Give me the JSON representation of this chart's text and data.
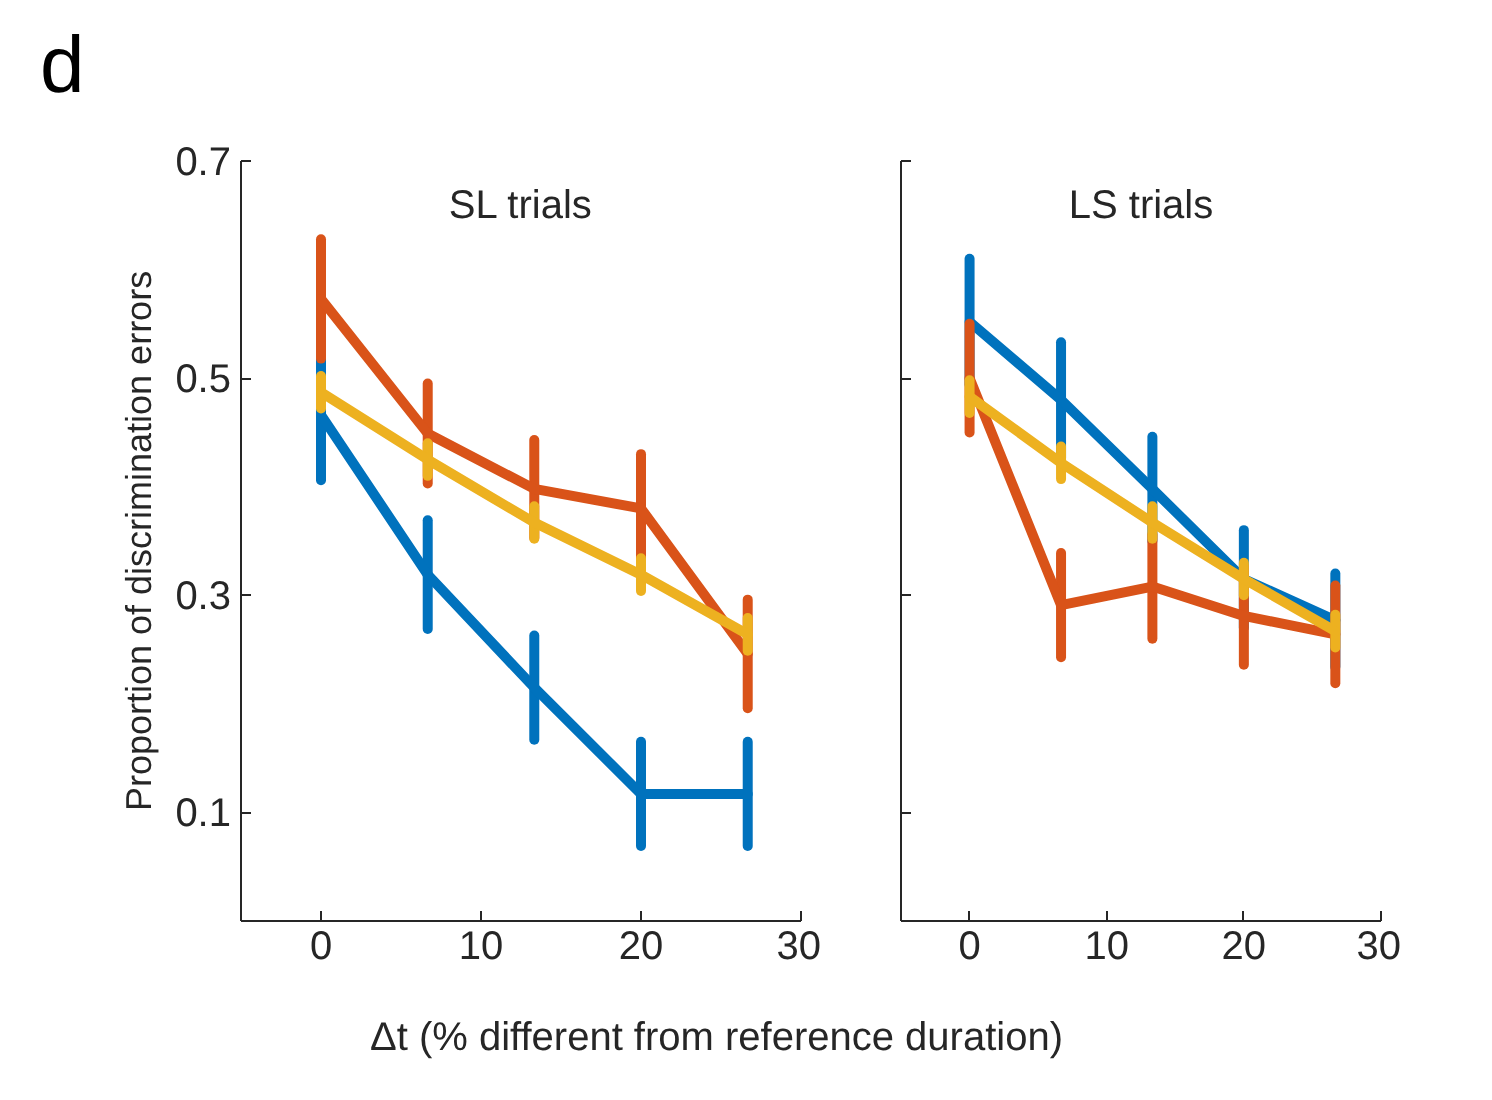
{
  "chart_data": [
    {
      "type": "line",
      "title": "SL trials",
      "ylabel": "Proportion of discrimination errors",
      "xlabel": "Δt (% different from reference duration)",
      "annotations": [
        "d"
      ],
      "x": [
        0,
        6.67,
        13.33,
        20,
        26.67
      ],
      "xlim": [
        -5,
        30
      ],
      "xticks": [
        0,
        10,
        20,
        30
      ],
      "ylim": [
        0,
        0.7
      ],
      "yticks": [
        0.1,
        0.3,
        0.5,
        0.7
      ],
      "grid": false,
      "series": [
        {
          "color": "#0072bd",
          "values": [
            0.466,
            0.319,
            0.215,
            0.117,
            0.117
          ],
          "errors": [
            0.06,
            0.05,
            0.048,
            0.048,
            0.048
          ]
        },
        {
          "color": "#d95319",
          "values": [
            0.573,
            0.449,
            0.398,
            0.38,
            0.246
          ],
          "errors": [
            0.055,
            0.046,
            0.045,
            0.05,
            0.05
          ]
        },
        {
          "color": "#edb120",
          "values": [
            0.487,
            0.425,
            0.367,
            0.319,
            0.264
          ],
          "errors": [
            0.015,
            0.015,
            0.015,
            0.015,
            0.015
          ]
        }
      ]
    },
    {
      "type": "line",
      "title": "LS trials",
      "tick_labels": "x",
      "x": [
        0,
        6.67,
        13.33,
        20,
        26.67
      ],
      "xlim": [
        -5,
        30
      ],
      "xticks": [
        0,
        10,
        20,
        30
      ],
      "ylim": [
        0,
        0.7
      ],
      "yticks": [
        0.1,
        0.3,
        0.5,
        0.7
      ],
      "grid": false,
      "series": [
        {
          "color": "#0072bd",
          "values": [
            0.552,
            0.48,
            0.398,
            0.315,
            0.277
          ],
          "errors": [
            0.058,
            0.053,
            0.048,
            0.045,
            0.043
          ]
        },
        {
          "color": "#d95319",
          "values": [
            0.5,
            0.291,
            0.308,
            0.281,
            0.264
          ],
          "errors": [
            0.05,
            0.048,
            0.048,
            0.045,
            0.045
          ]
        },
        {
          "color": "#edb120",
          "values": [
            0.483,
            0.422,
            0.367,
            0.315,
            0.267
          ],
          "errors": [
            0.015,
            0.015,
            0.015,
            0.015,
            0.015
          ]
        }
      ]
    }
  ]
}
